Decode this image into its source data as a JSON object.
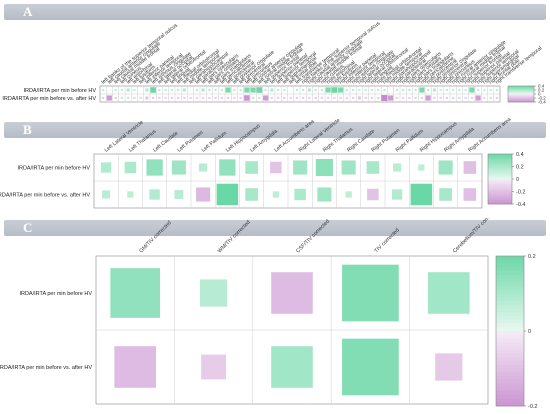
{
  "colors": {
    "positive": "#5dd39e",
    "negative": "#c589cc",
    "border": "#888888",
    "grid": "#cfcfcf",
    "banner_text": "#ffffff"
  },
  "panels": [
    {
      "letter": "A"
    },
    {
      "letter": "B"
    },
    {
      "letter": "C"
    }
  ],
  "chart_data": [
    {
      "type": "heatmap",
      "panel": "A",
      "rows": [
        "IRDA/IRTA per min before HV",
        "IRDA/IRTA per min before vs. after HV"
      ],
      "columns": [
        "left banks of the superior temporal sulcus",
        "left caudal anterior cingulate",
        "left caudal middle frontal",
        "left cuneus",
        "left entorhinal",
        "left fusiform",
        "left inferior parietal",
        "left inferior temporal",
        "left isthmus cingulate",
        "left lateral occipital",
        "left lateral orbitofrontal",
        "left lingual",
        "left medial orbitofrontal",
        "left middle temporal",
        "left parahippocampal",
        "left paracentral",
        "left pars opercularis",
        "left pars orbitalis",
        "left pars triangularis",
        "left pericalcarine",
        "left postcentral",
        "left posterior cingulate",
        "left precentral",
        "left precuneus",
        "left rostral anterior cingulate",
        "left rostral middle frontal",
        "left superior frontal",
        "left superior parietal",
        "left superior temporal",
        "left supramarginal",
        "left frontal pole",
        "left transverse temporal",
        "right banks of the superior temporal sulcus",
        "right caudal anterior cingulate",
        "right caudal middle frontal",
        "right cuneus",
        "right entorhinal",
        "right fusiform",
        "right inferior parietal",
        "right inferior temporal",
        "right isthmus cingulate",
        "right lateral occipital",
        "right lateral orbitofrontal",
        "right lingual",
        "right medial orbitofrontal",
        "right middle temporal",
        "right parahippocampal",
        "right paracentral",
        "right pars opercularis",
        "right pars orbitalis",
        "right pars triangularis",
        "right pericalcarine",
        "right postcentral",
        "right posterior cingulate",
        "right precentral",
        "right precuneus",
        "right rostral anterior cingulate",
        "right rostral middle frontal",
        "right superior frontal",
        "right superior parietal",
        "right superior temporal",
        "right supramarginal",
        "right frontal pole",
        "right transverse temporal"
      ],
      "values": [
        [
          0.05,
          0.0,
          0.05,
          0.05,
          0.1,
          0.05,
          0.0,
          0.1,
          0.35,
          0.05,
          0.05,
          0.05,
          0.05,
          0.1,
          0.0,
          0.05,
          0.1,
          0.05,
          0.05,
          0.05,
          0.3,
          0.05,
          0.05,
          0.3,
          0.3,
          0.35,
          0.05,
          0.1,
          0.05,
          0.05,
          0.0,
          0.05,
          0.05,
          0.1,
          0.05,
          0.05,
          0.3,
          0.35,
          0.3,
          0.05,
          0.05,
          0.05,
          0.05,
          0.05,
          0.05,
          0.05,
          0.0,
          0.05,
          0.05,
          0.05,
          0.05,
          0.3,
          0.05,
          0.1,
          0.05,
          0.05,
          0.05,
          0.05,
          0.05,
          0.3,
          0.05,
          0.05,
          0.05,
          0.05
        ],
        [
          -0.05,
          -0.3,
          -0.05,
          0.05,
          -0.05,
          -0.05,
          0.05,
          -0.1,
          -0.05,
          -0.05,
          -0.05,
          -0.05,
          -0.05,
          -0.05,
          -0.05,
          -0.05,
          -0.05,
          -0.05,
          -0.05,
          -0.05,
          -0.05,
          -0.05,
          -0.05,
          -0.35,
          -0.05,
          -0.05,
          -0.3,
          -0.05,
          -0.05,
          -0.05,
          -0.05,
          -0.05,
          -0.05,
          -0.05,
          -0.05,
          -0.05,
          -0.05,
          -0.05,
          -0.05,
          -0.05,
          -0.05,
          -0.1,
          -0.05,
          -0.05,
          -0.05,
          -0.4,
          -0.3,
          -0.05,
          -0.05,
          -0.05,
          -0.05,
          -0.05,
          -0.3,
          -0.05,
          -0.05,
          -0.05,
          -0.05,
          -0.05,
          -0.05,
          -0.05,
          -0.3,
          -0.05,
          -0.05,
          -0.05
        ]
      ],
      "colorbar_ticks": [
        "0.4",
        "0.2",
        "0",
        "-0.2",
        "-0.4"
      ],
      "value_range": [
        -0.4,
        0.4
      ]
    },
    {
      "type": "heatmap",
      "panel": "B",
      "rows": [
        "IRDA/IRTA per min before HV",
        "IRDA/IRTA per min before vs. after HV"
      ],
      "columns": [
        "Left Lateral Ventricle",
        "Left Thalamus",
        "Left Caudate",
        "Left Putamen",
        "Left Pallidum",
        "Left Hippocampus",
        "Left Amygdala",
        "Left Accumbens area",
        "Right Lateral Ventricle",
        "Right Thalamus",
        "Right Caudate",
        "Right Putamen",
        "Right Pallidum",
        "Right Hippocampus",
        "Right Amygdala",
        "Right Accumbens area"
      ],
      "values": [
        [
          0.08,
          0.1,
          0.2,
          0.15,
          0.05,
          0.2,
          0.12,
          -0.1,
          0.15,
          0.22,
          0.15,
          0.12,
          0.05,
          0.03,
          0.15,
          -0.12
        ],
        [
          0.05,
          0.03,
          0.08,
          0.06,
          -0.15,
          0.35,
          0.12,
          0.03,
          0.1,
          0.15,
          0.03,
          -0.1,
          0.08,
          0.35,
          0.12,
          -0.12
        ]
      ],
      "colorbar_ticks": [
        "0.4",
        "0.2",
        "0",
        "-0.2",
        "-0.4"
      ],
      "value_range": [
        -0.4,
        0.4
      ]
    },
    {
      "type": "heatmap",
      "panel": "C",
      "rows": [
        "IRDA/IRTA per min before HV",
        "IRDA/IRTA per min before vs. after HV"
      ],
      "columns": [
        "GM/TIV corrected",
        "WM/TIV corrected",
        "CSF/TIV corrected",
        "TIV corrected",
        "Cerebellum/TIV corrected"
      ],
      "values": [
        [
          0.1,
          0.03,
          -0.07,
          0.13,
          0.07
        ],
        [
          -0.07,
          -0.025,
          0.07,
          0.13,
          -0.03
        ]
      ],
      "colorbar_ticks": [
        "0.2",
        "0",
        "-0.2"
      ],
      "value_range": [
        -0.2,
        0.2
      ]
    }
  ]
}
